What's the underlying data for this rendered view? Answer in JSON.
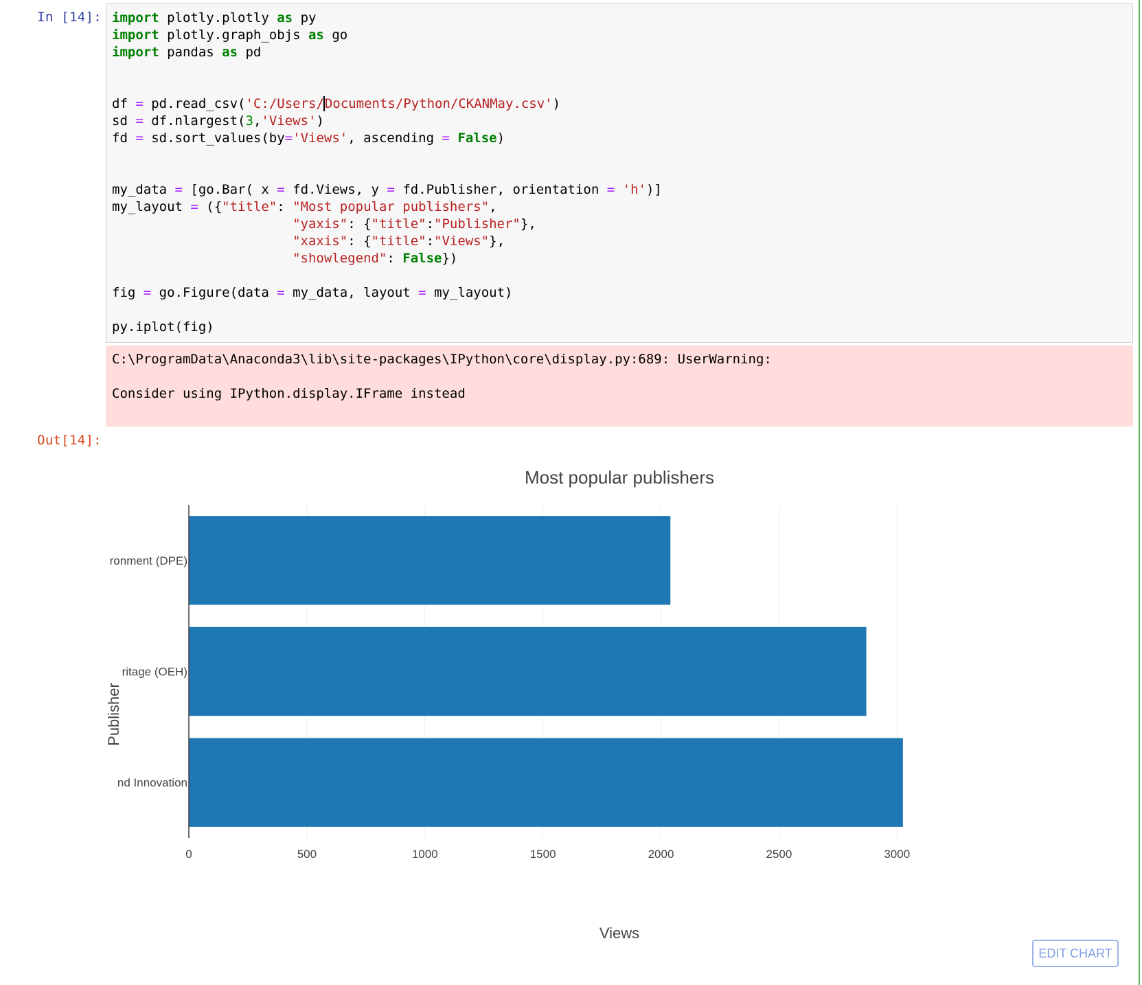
{
  "cell": {
    "in_prompt": "In [14]:",
    "out_prompt": "Out[14]:",
    "code_lines": [
      "import plotly.plotly as py",
      "import plotly.graph_objs as go",
      "import pandas as pd",
      "",
      "",
      "df = pd.read_csv('C:/Users/Documents/Python/CKANMay.csv')",
      "sd = df.nlargest(3,'Views')",
      "fd = sd.sort_values(by='Views', ascending = False)",
      "",
      "",
      "my_data = [go.Bar( x = fd.Views, y = fd.Publisher, orientation = 'h')]",
      "my_layout = ({\"title\": \"Most popular publishers\",",
      "                       \"yaxis\": {\"title\":\"Publisher\"},",
      "                       \"xaxis\": {\"title\":\"Views\"},",
      "                       \"showlegend\": False})",
      "",
      "fig = go.Figure(data = my_data, layout = my_layout)",
      "",
      "py.iplot(fig)"
    ],
    "stderr_lines": [
      "C:\\ProgramData\\Anaconda3\\lib\\site-packages\\IPython\\core\\display.py:689: UserWarning:",
      "",
      "Consider using IPython.display.IFrame instead"
    ]
  },
  "chart_data": {
    "type": "bar",
    "orientation": "h",
    "title": "Most popular publishers",
    "xlabel": "Views",
    "ylabel": "Publisher",
    "categories": [
      "ronment (DPE)",
      "ritage (OEH)",
      "nd Innovation"
    ],
    "values": [
      2040,
      2870,
      3025
    ],
    "x_ticks": [
      0,
      500,
      1000,
      1500,
      2000,
      2500,
      3000
    ],
    "xlim": [
      0,
      3200
    ],
    "grid": true,
    "legend": false,
    "bar_color": "#1f77b4"
  },
  "toolbar": {
    "edit_chart_label": "EDIT CHART"
  },
  "colors": {
    "keyword": "#008000",
    "operator": "#aa22ff",
    "string": "#ba2121",
    "stderr_background": "#ffdddd",
    "in_prompt": "#303f9f",
    "out_prompt": "#d84315"
  }
}
